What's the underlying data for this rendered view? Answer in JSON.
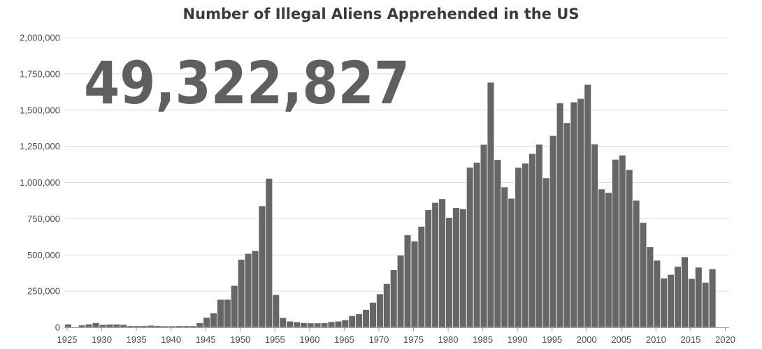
{
  "chart_data": {
    "type": "bar",
    "title": "Number of Illegal Aliens Apprehended in the US",
    "big_number": "49,322,827",
    "xlabel": "",
    "ylabel": "",
    "xlim": [
      1925,
      2020
    ],
    "ylim": [
      0,
      2000000
    ],
    "grid": true,
    "bar_color": "#666666",
    "bar_edge_color": "#ffffff",
    "grid_color": "#dddddd",
    "x_ticks": [
      "1925",
      "1930",
      "1935",
      "1940",
      "1945",
      "1950",
      "1955",
      "1960",
      "1965",
      "1970",
      "1975",
      "1980",
      "1985",
      "1990",
      "1995",
      "2000",
      "2005",
      "2010",
      "2015",
      "2020"
    ],
    "y_ticks": [
      "0",
      "250,000",
      "500,000",
      "750,000",
      "1,000,000",
      "1,250,000",
      "1,500,000",
      "1,750,000",
      "2,000,000"
    ],
    "y_tick_values": [
      0,
      250000,
      500000,
      750000,
      1000000,
      1250000,
      1500000,
      1750000,
      2000000
    ],
    "x_tick_values": [
      1925,
      1930,
      1935,
      1940,
      1945,
      1950,
      1955,
      1960,
      1965,
      1970,
      1975,
      1980,
      1985,
      1990,
      1995,
      2000,
      2005,
      2010,
      2015,
      2020
    ],
    "years": [
      1925,
      1926,
      1927,
      1928,
      1929,
      1930,
      1931,
      1932,
      1933,
      1934,
      1935,
      1936,
      1937,
      1938,
      1939,
      1940,
      1941,
      1942,
      1943,
      1944,
      1945,
      1946,
      1947,
      1948,
      1949,
      1950,
      1951,
      1952,
      1953,
      1954,
      1955,
      1956,
      1957,
      1958,
      1959,
      1960,
      1961,
      1962,
      1963,
      1964,
      1965,
      1966,
      1967,
      1968,
      1969,
      1970,
      1971,
      1972,
      1973,
      1974,
      1975,
      1976,
      1977,
      1978,
      1979,
      1980,
      1981,
      1982,
      1983,
      1984,
      1985,
      1986,
      1987,
      1988,
      1989,
      1990,
      1991,
      1992,
      1993,
      1994,
      1995,
      1996,
      1997,
      1998,
      1999,
      2000,
      2001,
      2002,
      2003,
      2004,
      2005,
      2006,
      2007,
      2008,
      2009,
      2010,
      2011,
      2012,
      2013,
      2014,
      2015,
      2016,
      2017,
      2018
    ],
    "values": [
      22000,
      5000,
      16000,
      23000,
      32000,
      20000,
      22000,
      22000,
      20000,
      11000,
      11000,
      11000,
      14000,
      12000,
      10000,
      10000,
      11000,
      11000,
      11000,
      31000,
      69000,
      99000,
      193000,
      193000,
      289000,
      469000,
      510000,
      529000,
      839000,
      1029000,
      226000,
      67000,
      43000,
      38000,
      32000,
      30000,
      30000,
      31000,
      39000,
      43000,
      52000,
      80000,
      93000,
      123000,
      172000,
      231000,
      302000,
      397000,
      499000,
      638000,
      596000,
      697000,
      812000,
      862000,
      888000,
      759000,
      826000,
      819000,
      1105000,
      1139000,
      1263000,
      1692000,
      1158000,
      969000,
      891000,
      1104000,
      1133000,
      1200000,
      1264000,
      1032000,
      1324000,
      1549000,
      1413000,
      1556000,
      1580000,
      1677000,
      1266000,
      955000,
      931000,
      1160000,
      1189000,
      1089000,
      877000,
      724000,
      556000,
      463000,
      340000,
      365000,
      421000,
      487000,
      337000,
      415000,
      311000,
      404000
    ]
  }
}
